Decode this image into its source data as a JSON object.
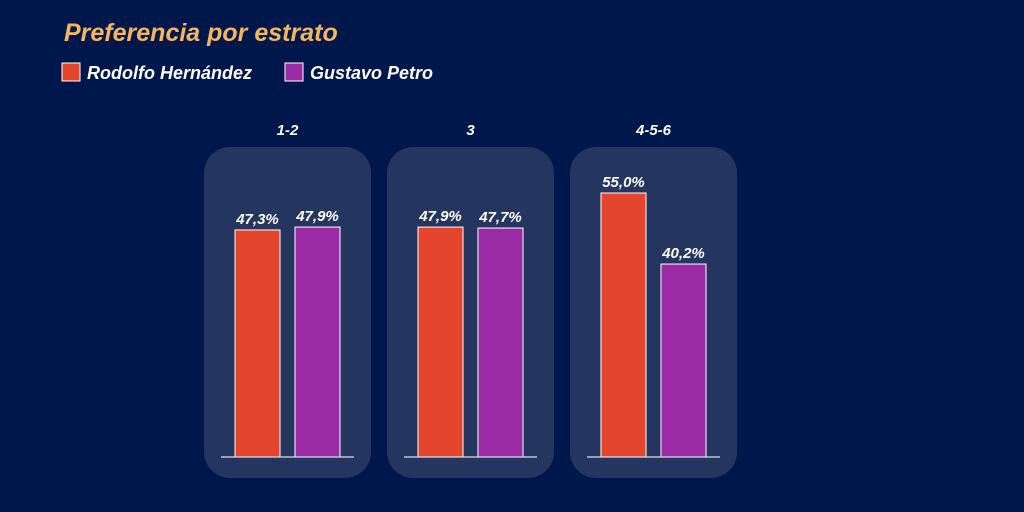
{
  "colors": {
    "background": "#00174b",
    "panel": "#243560",
    "title": "#f5b55c",
    "text": "#ffffff",
    "baseline": "#d9dce6"
  },
  "chart_data": {
    "type": "bar",
    "title": "Preferencia por estrato",
    "categories": [
      "1-2",
      "3",
      "4-5-6"
    ],
    "series": [
      {
        "name": "Rodolfo Hernández",
        "color": "#e4462d",
        "values": [
          47.3,
          47.9,
          55.0
        ],
        "labels": [
          "47,3%",
          "47,9%",
          "55,0%"
        ]
      },
      {
        "name": "Gustavo Petro",
        "color": "#9b2ba4",
        "values": [
          47.9,
          47.7,
          40.2
        ],
        "labels": [
          "47,9%",
          "47,7%",
          "40,2%"
        ]
      }
    ],
    "ylim": [
      0,
      100
    ],
    "legend": "top-left",
    "grid": false
  }
}
